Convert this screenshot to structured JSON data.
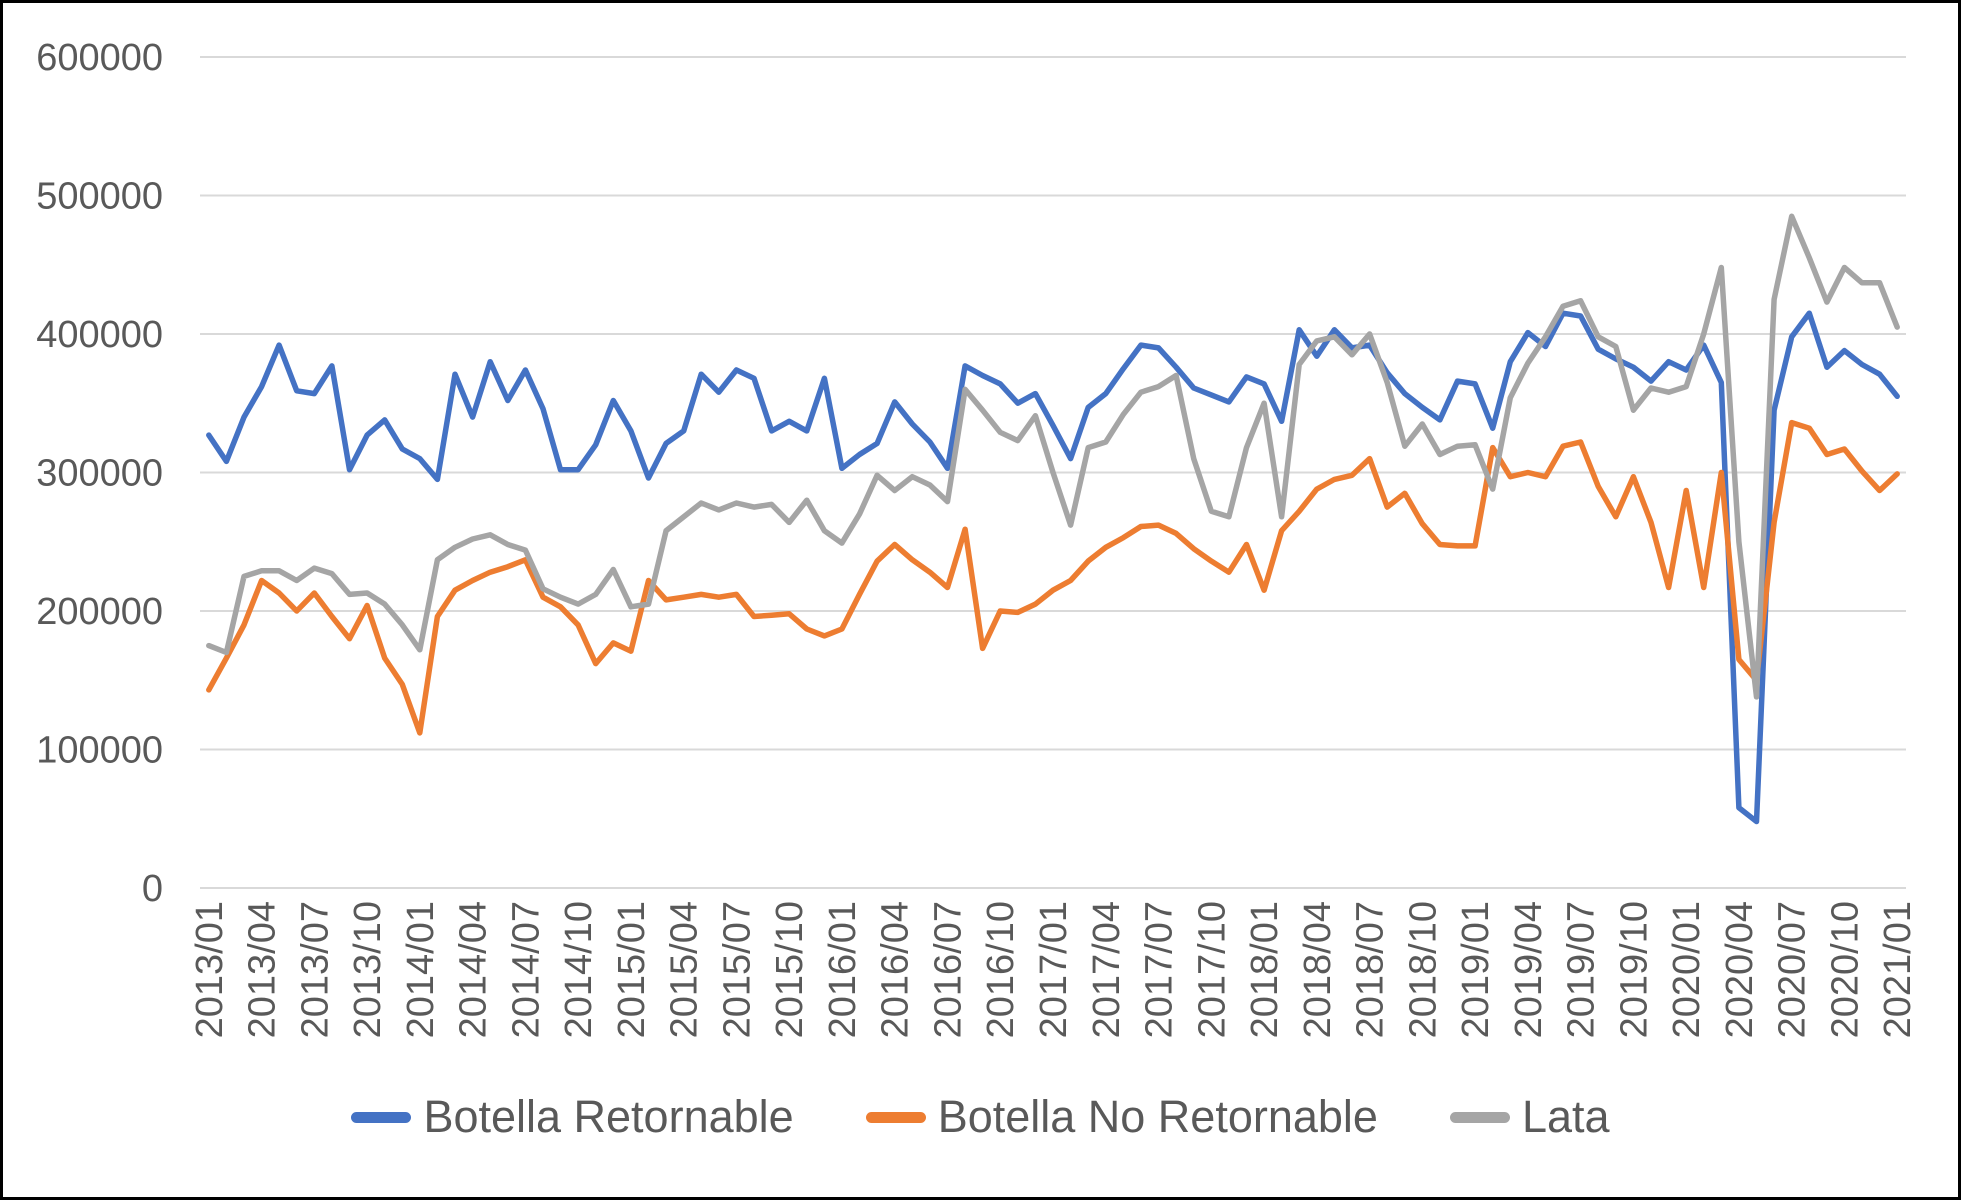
{
  "chart_data": {
    "type": "line",
    "title": "",
    "xlabel": "",
    "ylabel": "",
    "ylim": [
      0,
      600000
    ],
    "y_ticks": [
      0,
      100000,
      200000,
      300000,
      400000,
      500000,
      600000
    ],
    "x_tick_every": 3,
    "grid": true,
    "legend_position": "bottom",
    "axis_text_color": "#595959",
    "gridline_color": "#D9D9D9",
    "x": [
      "2013/01",
      "2013/02",
      "2013/03",
      "2013/04",
      "2013/05",
      "2013/06",
      "2013/07",
      "2013/08",
      "2013/09",
      "2013/10",
      "2013/11",
      "2013/12",
      "2014/01",
      "2014/02",
      "2014/03",
      "2014/04",
      "2014/05",
      "2014/06",
      "2014/07",
      "2014/08",
      "2014/09",
      "2014/10",
      "2014/11",
      "2014/12",
      "2015/01",
      "2015/02",
      "2015/03",
      "2015/04",
      "2015/05",
      "2015/06",
      "2015/07",
      "2015/08",
      "2015/09",
      "2015/10",
      "2015/11",
      "2015/12",
      "2016/01",
      "2016/02",
      "2016/03",
      "2016/04",
      "2016/05",
      "2016/06",
      "2016/07",
      "2016/08",
      "2016/09",
      "2016/10",
      "2016/11",
      "2016/12",
      "2017/01",
      "2017/02",
      "2017/03",
      "2017/04",
      "2017/05",
      "2017/06",
      "2017/07",
      "2017/08",
      "2017/09",
      "2017/10",
      "2017/11",
      "2017/12",
      "2018/01",
      "2018/02",
      "2018/03",
      "2018/04",
      "2018/05",
      "2018/06",
      "2018/07",
      "2018/08",
      "2018/09",
      "2018/10",
      "2018/11",
      "2018/12",
      "2019/01",
      "2019/02",
      "2019/03",
      "2019/04",
      "2019/05",
      "2019/06",
      "2019/07",
      "2019/08",
      "2019/09",
      "2019/10",
      "2019/11",
      "2019/12",
      "2020/01",
      "2020/02",
      "2020/03",
      "2020/04",
      "2020/05",
      "2020/06",
      "2020/07",
      "2020/08",
      "2020/09",
      "2020/10",
      "2020/11",
      "2020/12",
      "2021/01"
    ],
    "series": [
      {
        "name": "Botella Retornable",
        "color": "#4472C4",
        "values": [
          327000,
          308000,
          340000,
          362000,
          392000,
          359000,
          357000,
          377000,
          302000,
          327000,
          338000,
          317000,
          310000,
          295000,
          371000,
          340000,
          380000,
          352000,
          374000,
          346000,
          302000,
          302000,
          320000,
          352000,
          330000,
          296000,
          321000,
          330000,
          371000,
          358000,
          374000,
          368000,
          330000,
          337000,
          330000,
          368000,
          303000,
          313000,
          321000,
          351000,
          335000,
          322000,
          303000,
          377000,
          370000,
          364000,
          350000,
          357000,
          334000,
          310000,
          347000,
          357000,
          375000,
          392000,
          390000,
          376000,
          361000,
          356000,
          351000,
          369000,
          364000,
          337000,
          403000,
          384000,
          403000,
          390000,
          392000,
          372000,
          357000,
          347000,
          338000,
          366000,
          364000,
          332000,
          380000,
          401000,
          391000,
          415000,
          413000,
          389000,
          382000,
          376000,
          366000,
          380000,
          374000,
          392000,
          365000,
          58000,
          48000,
          345000,
          398000,
          415000,
          376000,
          388000,
          378000,
          371000,
          355000
        ]
      },
      {
        "name": "Botella No Retornable",
        "color": "#ED7D31",
        "values": [
          143000,
          166000,
          190000,
          222000,
          213000,
          200000,
          213000,
          196000,
          180000,
          204000,
          166000,
          147000,
          112000,
          196000,
          215000,
          222000,
          228000,
          232000,
          237000,
          210000,
          203000,
          190000,
          162000,
          177000,
          171000,
          222000,
          208000,
          210000,
          212000,
          210000,
          212000,
          196000,
          197000,
          198000,
          187000,
          182000,
          187000,
          212000,
          236000,
          248000,
          237000,
          228000,
          217000,
          259000,
          173000,
          200000,
          199000,
          205000,
          215000,
          222000,
          236000,
          246000,
          253000,
          261000,
          262000,
          256000,
          245000,
          236000,
          228000,
          248000,
          215000,
          258000,
          272000,
          288000,
          295000,
          298000,
          310000,
          275000,
          285000,
          263000,
          248000,
          247000,
          247000,
          318000,
          297000,
          300000,
          297000,
          319000,
          322000,
          290000,
          268000,
          297000,
          264000,
          217000,
          287000,
          217000,
          300000,
          165000,
          150000,
          264000,
          336000,
          332000,
          313000,
          317000,
          301000,
          287000,
          299000
        ]
      },
      {
        "name": "Lata",
        "color": "#A5A5A5",
        "values": [
          175000,
          170000,
          225000,
          229000,
          229000,
          222000,
          231000,
          227000,
          212000,
          213000,
          205000,
          190000,
          172000,
          237000,
          246000,
          252000,
          255000,
          248000,
          244000,
          216000,
          210000,
          205000,
          212000,
          230000,
          203000,
          205000,
          258000,
          268000,
          278000,
          273000,
          278000,
          275000,
          277000,
          264000,
          280000,
          258000,
          249000,
          270000,
          298000,
          287000,
          297000,
          291000,
          279000,
          360000,
          345000,
          329000,
          323000,
          341000,
          300000,
          262000,
          318000,
          322000,
          342000,
          358000,
          362000,
          370000,
          310000,
          272000,
          268000,
          318000,
          350000,
          268000,
          378000,
          395000,
          398000,
          385000,
          400000,
          365000,
          319000,
          335000,
          313000,
          319000,
          320000,
          288000,
          354000,
          379000,
          398000,
          420000,
          424000,
          398000,
          391000,
          345000,
          361000,
          358000,
          362000,
          400000,
          448000,
          250000,
          138000,
          425000,
          485000,
          455000,
          423000,
          448000,
          437000,
          437000,
          405000
        ]
      }
    ]
  },
  "legend": {
    "items": [
      {
        "label": "Botella Retornable"
      },
      {
        "label": "Botella No Retornable"
      },
      {
        "label": "Lata"
      }
    ]
  }
}
